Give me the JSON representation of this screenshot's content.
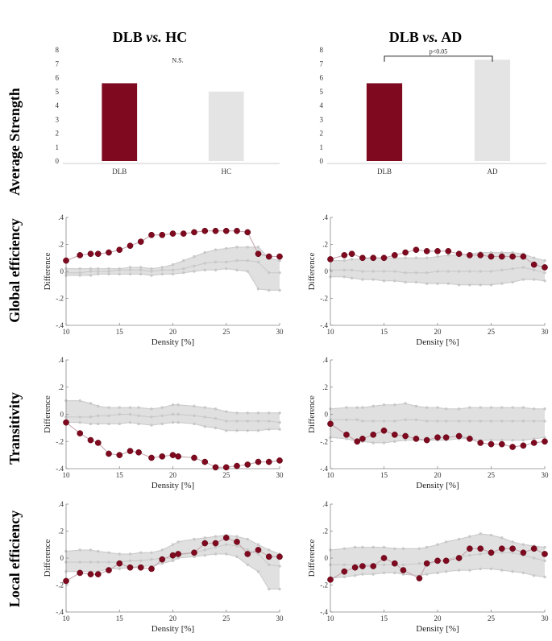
{
  "column_titles": [
    {
      "prefix": "DLB ",
      "vs": "vs.",
      "suffix": " HC"
    },
    {
      "prefix": "DLB ",
      "vs": "vs.",
      "suffix": " AD"
    }
  ],
  "row_labels": [
    "Average Strength",
    "Global efficiency",
    "Transitivity",
    "Local efficiency"
  ],
  "colors": {
    "dlb": "#7f0a1f",
    "control": "#e4e4e4",
    "band": "#e0e0e0",
    "null_line": "#c8c8c8",
    "diff_line": "#c2a0a8"
  },
  "chart_data": [
    {
      "type": "bar",
      "panel": "strength-hc",
      "categories": [
        "DLB",
        "HC"
      ],
      "values": [
        5.6,
        5.0
      ],
      "ylim": [
        0,
        8
      ],
      "yticks": [
        0,
        1,
        2,
        3,
        4,
        5,
        6,
        7,
        8
      ],
      "annotation": "N.S.",
      "bracket": false
    },
    {
      "type": "bar",
      "panel": "strength-ad",
      "categories": [
        "DLB",
        "AD"
      ],
      "values": [
        5.6,
        7.3
      ],
      "ylim": [
        0,
        8
      ],
      "yticks": [
        0,
        1,
        2,
        3,
        4,
        5,
        6,
        7,
        8
      ],
      "annotation": "p<0.05",
      "bracket": true
    },
    {
      "type": "line",
      "panel": "global-hc",
      "xlabel": "Density [%]",
      "ylabel": "Difference",
      "xlim": [
        10,
        30
      ],
      "ylim": [
        -0.4,
        0.4
      ],
      "xticks": [
        10,
        15,
        20,
        25,
        30
      ],
      "yticks": [
        -0.4,
        -0.2,
        0,
        0.2,
        0.4
      ],
      "x": [
        10,
        11.3,
        12.3,
        13,
        14,
        15,
        16,
        17,
        18,
        19,
        20,
        21,
        22,
        23,
        24,
        25,
        26,
        27,
        28,
        29,
        30
      ],
      "observed": [
        0.08,
        0.12,
        0.13,
        0.13,
        0.14,
        0.16,
        0.19,
        0.22,
        0.27,
        0.27,
        0.28,
        0.28,
        0.29,
        0.3,
        0.3,
        0.3,
        0.3,
        0.29,
        0.13,
        0.11,
        0.11
      ],
      "null_mean": [
        -0.01,
        -0.01,
        0,
        0,
        0,
        0.01,
        0.01,
        0.01,
        0,
        0.01,
        0.01,
        0.02,
        0.04,
        0.06,
        0.07,
        0.07,
        0.08,
        0.08,
        0.07,
        -0.01,
        -0.01
      ],
      "band_upper": [
        0.02,
        0.02,
        0.02,
        0.02,
        0.02,
        0.02,
        0.03,
        0.03,
        0.02,
        0.03,
        0.05,
        0.08,
        0.11,
        0.14,
        0.16,
        0.17,
        0.18,
        0.18,
        0.18,
        0.1,
        0.08
      ],
      "band_lower": [
        -0.03,
        -0.03,
        -0.03,
        -0.02,
        -0.02,
        -0.02,
        -0.02,
        -0.02,
        -0.03,
        -0.02,
        -0.02,
        -0.01,
        0,
        0.01,
        0.01,
        0.02,
        0.01,
        0,
        -0.13,
        -0.14,
        -0.14
      ]
    },
    {
      "type": "line",
      "panel": "global-ad",
      "xlabel": "Density [%]",
      "ylabel": "Difference",
      "xlim": [
        10,
        30
      ],
      "ylim": [
        -0.4,
        0.4
      ],
      "xticks": [
        10,
        15,
        20,
        25,
        30
      ],
      "yticks": [
        -0.4,
        -0.2,
        0,
        0.2,
        0.4
      ],
      "x": [
        10,
        11.3,
        12,
        13,
        14,
        15,
        16,
        17,
        18,
        19,
        20,
        21,
        22,
        23,
        24,
        25,
        26,
        27,
        28,
        29,
        30
      ],
      "observed": [
        0.09,
        0.12,
        0.13,
        0.1,
        0.1,
        0.1,
        0.12,
        0.14,
        0.16,
        0.15,
        0.15,
        0.15,
        0.13,
        0.12,
        0.12,
        0.11,
        0.11,
        0.11,
        0.11,
        0.05,
        0.03
      ],
      "null_mean": [
        0.01,
        0.01,
        0.01,
        0,
        0,
        0,
        0,
        -0.01,
        -0.01,
        -0.01,
        0,
        0,
        0,
        0,
        0,
        0,
        0.01,
        0.02,
        0.03,
        0.01,
        -0.01
      ],
      "band_upper": [
        0.08,
        0.08,
        0.09,
        0.09,
        0.1,
        0.1,
        0.1,
        0.1,
        0.1,
        0.1,
        0.11,
        0.12,
        0.12,
        0.13,
        0.14,
        0.14,
        0.14,
        0.14,
        0.13,
        0.1,
        0.08
      ],
      "band_lower": [
        -0.04,
        -0.04,
        -0.05,
        -0.06,
        -0.06,
        -0.07,
        -0.07,
        -0.08,
        -0.08,
        -0.09,
        -0.09,
        -0.09,
        -0.1,
        -0.1,
        -0.1,
        -0.1,
        -0.09,
        -0.08,
        -0.06,
        -0.06,
        -0.07
      ]
    },
    {
      "type": "line",
      "panel": "trans-hc",
      "xlabel": "Density [%]",
      "ylabel": "Difference",
      "xlim": [
        10,
        30
      ],
      "ylim": [
        -0.4,
        0.4
      ],
      "xticks": [
        10,
        15,
        20,
        25,
        30
      ],
      "yticks": [
        -0.4,
        -0.2,
        0,
        0.2,
        0.4
      ],
      "x": [
        10,
        11.3,
        12.3,
        13,
        14,
        15,
        16,
        16.8,
        18,
        19,
        20,
        20.5,
        22,
        23,
        24,
        25,
        26,
        27,
        28,
        29,
        30
      ],
      "observed": [
        -0.06,
        -0.14,
        -0.19,
        -0.21,
        -0.29,
        -0.3,
        -0.27,
        -0.28,
        -0.32,
        -0.31,
        -0.3,
        -0.31,
        -0.32,
        -0.35,
        -0.39,
        -0.39,
        -0.38,
        -0.37,
        -0.35,
        -0.35,
        -0.34
      ],
      "null_mean": [
        -0.02,
        -0.02,
        -0.02,
        -0.01,
        -0.01,
        0,
        0,
        -0.01,
        -0.02,
        -0.01,
        0,
        0,
        -0.01,
        -0.02,
        -0.03,
        -0.05,
        -0.05,
        -0.05,
        -0.05,
        -0.05,
        -0.06
      ],
      "band_upper": [
        0.1,
        0.1,
        0.08,
        0.06,
        0.05,
        0.05,
        0.05,
        0.05,
        0.04,
        0.05,
        0.07,
        0.07,
        0.06,
        0.05,
        0.04,
        0.02,
        0.01,
        0.01,
        0.01,
        0.01,
        0.01
      ],
      "band_lower": [
        -0.06,
        -0.06,
        -0.07,
        -0.07,
        -0.07,
        -0.07,
        -0.06,
        -0.07,
        -0.08,
        -0.07,
        -0.06,
        -0.06,
        -0.07,
        -0.09,
        -0.1,
        -0.12,
        -0.12,
        -0.12,
        -0.12,
        -0.11,
        -0.11
      ]
    },
    {
      "type": "line",
      "panel": "trans-ad",
      "xlabel": "Density [%]",
      "ylabel": "Difference",
      "xlim": [
        10,
        30
      ],
      "ylim": [
        -0.4,
        0.4
      ],
      "xticks": [
        10,
        15,
        20,
        25,
        30
      ],
      "yticks": [
        -0.4,
        -0.2,
        0,
        0.2,
        0.4
      ],
      "x": [
        10,
        11.5,
        12.5,
        13,
        14,
        15,
        16,
        17,
        18,
        19,
        20,
        20.8,
        22,
        23,
        24,
        25,
        26,
        27,
        28,
        29,
        30
      ],
      "observed": [
        -0.07,
        -0.15,
        -0.2,
        -0.18,
        -0.15,
        -0.12,
        -0.15,
        -0.16,
        -0.18,
        -0.19,
        -0.17,
        -0.17,
        -0.16,
        -0.18,
        -0.21,
        -0.22,
        -0.22,
        -0.24,
        -0.23,
        -0.21,
        -0.2
      ],
      "null_mean": [
        -0.04,
        -0.04,
        -0.04,
        -0.05,
        -0.05,
        -0.05,
        -0.05,
        -0.04,
        -0.04,
        -0.05,
        -0.05,
        -0.05,
        -0.05,
        -0.05,
        -0.05,
        -0.05,
        -0.05,
        -0.05,
        -0.05,
        -0.05,
        -0.05
      ],
      "band_upper": [
        0.04,
        0.05,
        0.05,
        0.05,
        0.06,
        0.07,
        0.07,
        0.08,
        0.06,
        0.05,
        0.05,
        0.04,
        0.04,
        0.05,
        0.05,
        0.05,
        0.05,
        0.05,
        0.05,
        0.04,
        0.04
      ],
      "band_lower": [
        -0.17,
        -0.18,
        -0.2,
        -0.2,
        -0.21,
        -0.21,
        -0.2,
        -0.19,
        -0.19,
        -0.19,
        -0.19,
        -0.19,
        -0.18,
        -0.18,
        -0.19,
        -0.19,
        -0.19,
        -0.19,
        -0.19,
        -0.18,
        -0.17
      ]
    },
    {
      "type": "line",
      "panel": "local-hc",
      "xlabel": "Density [%]",
      "ylabel": "Difference",
      "xlim": [
        10,
        30
      ],
      "ylim": [
        -0.4,
        0.4
      ],
      "xticks": [
        10,
        15,
        20,
        25,
        30
      ],
      "yticks": [
        -0.4,
        -0.2,
        0,
        0.2,
        0.4
      ],
      "x": [
        10,
        11.3,
        12.3,
        13,
        14,
        15,
        16,
        17,
        18,
        19,
        20,
        20.5,
        22,
        23,
        24,
        25,
        26,
        27,
        28,
        29,
        30
      ],
      "observed": [
        -0.17,
        -0.11,
        -0.12,
        -0.12,
        -0.09,
        -0.04,
        -0.07,
        -0.07,
        -0.08,
        -0.01,
        0.02,
        0.03,
        0.04,
        0.11,
        0.11,
        0.15,
        0.12,
        0.03,
        0.06,
        0.01,
        0.01
      ],
      "null_mean": [
        -0.03,
        -0.03,
        -0.03,
        -0.03,
        -0.03,
        -0.03,
        -0.02,
        -0.02,
        -0.01,
        0,
        0,
        0.02,
        0.04,
        0.06,
        0.08,
        0.1,
        0.09,
        0.06,
        0.03,
        -0.05,
        -0.06
      ],
      "band_upper": [
        0.05,
        0.06,
        0.06,
        0.05,
        0.04,
        0.03,
        0.03,
        0.04,
        0.04,
        0.06,
        0.1,
        0.12,
        0.14,
        0.15,
        0.16,
        0.17,
        0.16,
        0.14,
        0.1,
        0.06,
        0.03
      ],
      "band_lower": [
        -0.1,
        -0.1,
        -0.1,
        -0.1,
        -0.08,
        -0.08,
        -0.07,
        -0.06,
        -0.06,
        -0.04,
        -0.02,
        0,
        0.01,
        0.02,
        0.03,
        0.03,
        0.01,
        -0.05,
        -0.1,
        -0.23,
        -0.23
      ]
    },
    {
      "type": "line",
      "panel": "local-ad",
      "xlabel": "Density [%]",
      "ylabel": "Difference",
      "xlim": [
        10,
        30
      ],
      "ylim": [
        -0.4,
        0.4
      ],
      "xticks": [
        10,
        15,
        20,
        25,
        30
      ],
      "yticks": [
        -0.4,
        -0.2,
        0,
        0.2,
        0.4
      ],
      "x": [
        10,
        11.3,
        12.3,
        13,
        14,
        15,
        16,
        16.8,
        18.3,
        19,
        20,
        20.8,
        22,
        23,
        24,
        25,
        26,
        27,
        28,
        29,
        30
      ],
      "observed": [
        -0.16,
        -0.1,
        -0.07,
        -0.06,
        -0.06,
        0,
        -0.04,
        -0.09,
        -0.15,
        -0.04,
        -0.02,
        -0.02,
        0,
        0.07,
        0.07,
        0.04,
        0.07,
        0.07,
        0.04,
        0.07,
        0.03
      ],
      "null_mean": [
        -0.05,
        -0.05,
        -0.05,
        -0.05,
        -0.05,
        -0.05,
        -0.05,
        -0.05,
        -0.04,
        -0.04,
        -0.03,
        -0.01,
        0.01,
        0.02,
        0.03,
        0.04,
        0.04,
        0.04,
        0.02,
        0,
        -0.02
      ],
      "band_upper": [
        0.06,
        0.07,
        0.08,
        0.08,
        0.08,
        0.08,
        0.07,
        0.07,
        0.07,
        0.08,
        0.1,
        0.12,
        0.14,
        0.16,
        0.18,
        0.17,
        0.15,
        0.12,
        0.1,
        0.09,
        0.08
      ],
      "band_lower": [
        -0.15,
        -0.14,
        -0.13,
        -0.12,
        -0.12,
        -0.11,
        -0.11,
        -0.12,
        -0.13,
        -0.12,
        -0.11,
        -0.1,
        -0.09,
        -0.09,
        -0.08,
        -0.08,
        -0.09,
        -0.1,
        -0.11,
        -0.13,
        -0.14
      ]
    }
  ]
}
